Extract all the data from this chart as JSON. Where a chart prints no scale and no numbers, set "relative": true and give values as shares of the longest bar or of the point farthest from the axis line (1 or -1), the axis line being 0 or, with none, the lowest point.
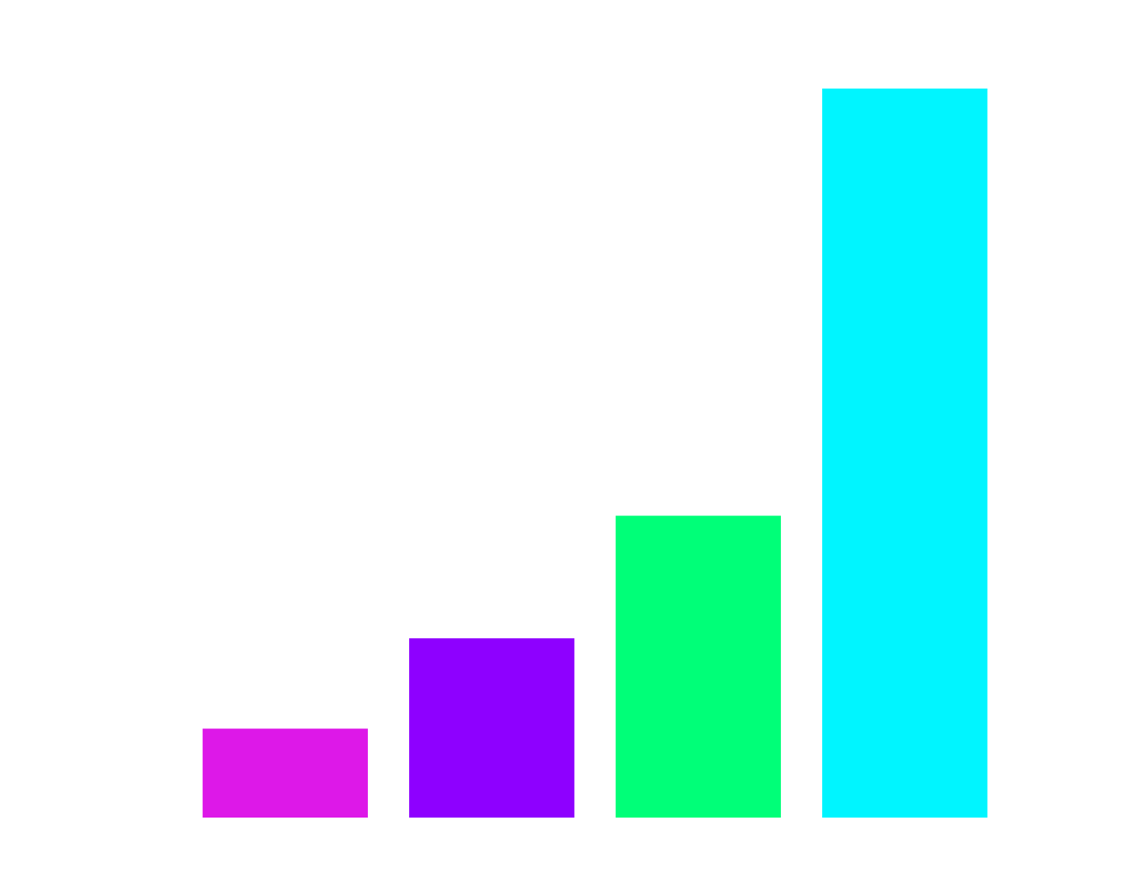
{
  "chart_data": {
    "type": "bar",
    "relative": true,
    "categories": [
      null,
      null,
      null,
      null
    ],
    "values": [
      0.122,
      0.246,
      0.414,
      1
    ],
    "colors": [
      "#dd18e8",
      "#8e00ff",
      "#00ff78",
      "#00f5ff"
    ],
    "legend": false
  }
}
